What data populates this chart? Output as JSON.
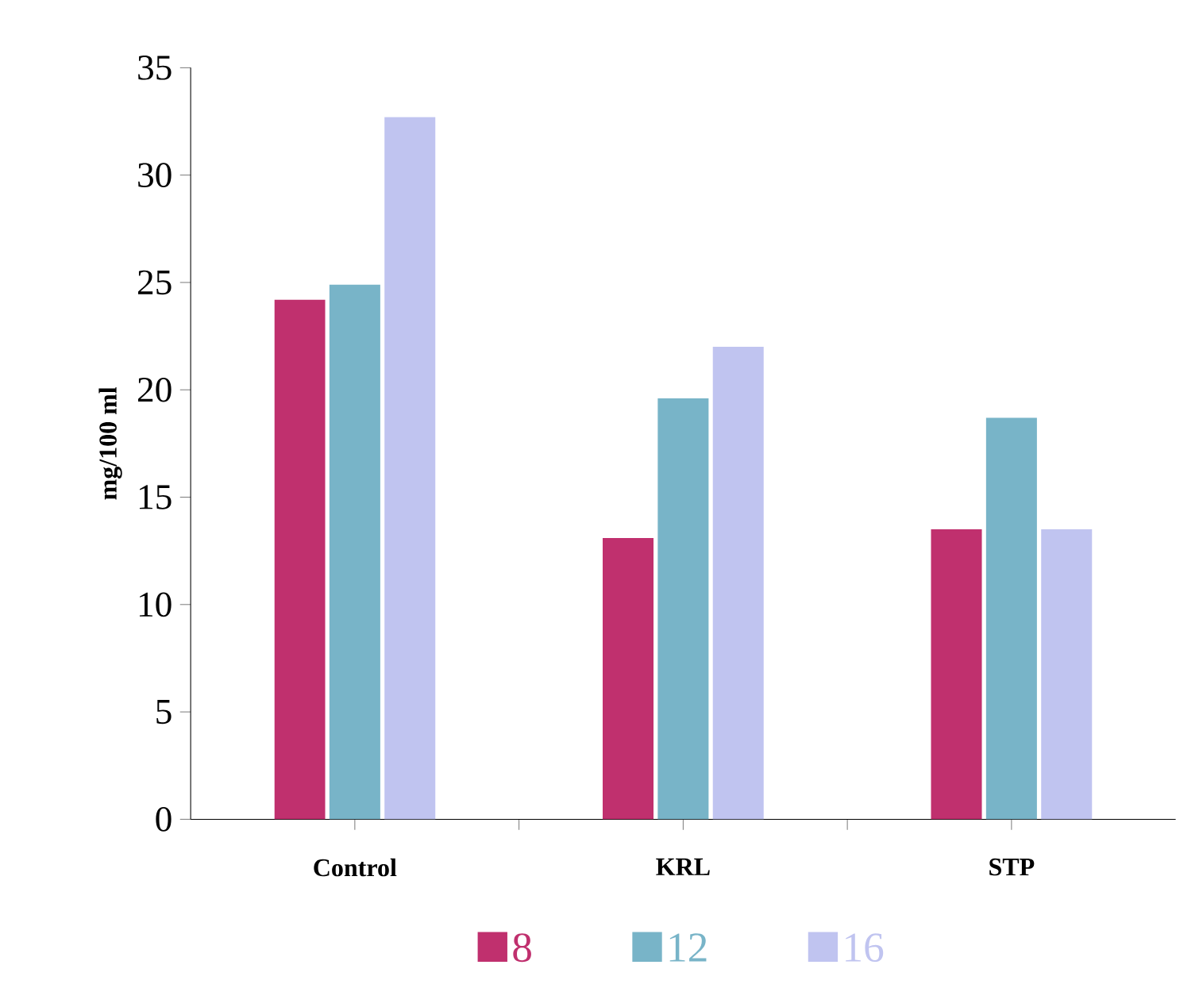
{
  "chart_data": {
    "type": "bar",
    "ylabel": "mg/100 ml",
    "categories": [
      "Control",
      "KRL",
      "STP"
    ],
    "series": [
      {
        "name": "8",
        "color": "#c0306e",
        "values": [
          24.2,
          13.1,
          13.5
        ]
      },
      {
        "name": "12",
        "color": "#78b4c8",
        "values": [
          24.9,
          19.6,
          18.7
        ]
      },
      {
        "name": "16",
        "color": "#c0c4f0",
        "values": [
          32.7,
          22.0,
          13.5
        ]
      }
    ],
    "ylim": [
      0,
      35
    ],
    "yticks": [
      0,
      5,
      10,
      15,
      20,
      25,
      30,
      35
    ],
    "grid": false,
    "legend": "bottom"
  }
}
